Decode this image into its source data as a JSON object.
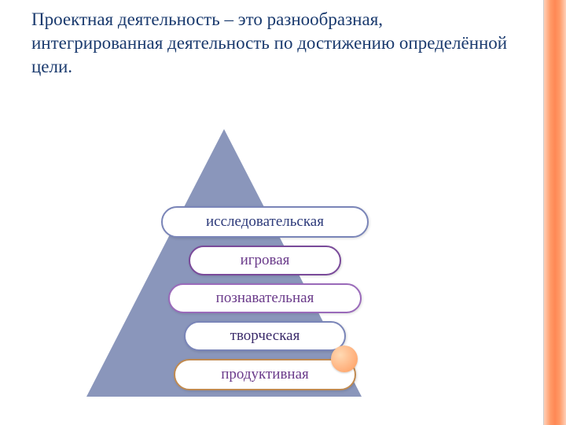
{
  "title": "Проектная деятельность – это разнообразная, интегрированная деятельность по достижению определённой цели.",
  "diagram": {
    "type": "pyramid-list",
    "triangle_color": "#8a96bb",
    "frame_gradient": [
      "#ffd0b8",
      "#ff8855"
    ],
    "accent_dot_color": "#ffb380",
    "background_color": "#ffffff",
    "page_background": "#e8e8e8",
    "title_color": "#1a3a6e",
    "title_fontsize_pt": 18,
    "pill_fontsize_pt": 15,
    "items": [
      {
        "label": "исследовательская",
        "text_color": "#2d3a7a",
        "border_color": "#7a85b8"
      },
      {
        "label": "игровая",
        "text_color": "#6a3a8a",
        "border_color": "#7a4a9a"
      },
      {
        "label": "познавательная",
        "text_color": "#6a3a8a",
        "border_color": "#9a6aba"
      },
      {
        "label": "творческая",
        "text_color": "#3a2a6a",
        "border_color": "#7a85b8"
      },
      {
        "label": "продуктивная",
        "text_color": "#6a3a8a",
        "border_color": "#c08a50"
      }
    ]
  }
}
